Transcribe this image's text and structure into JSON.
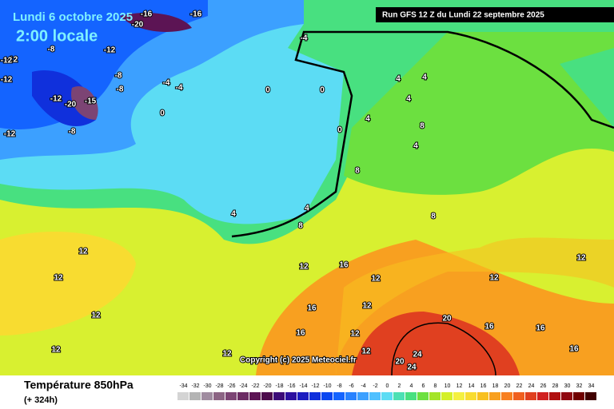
{
  "header": {
    "date": "Lundi 6 octobre 2025",
    "time": "2:00 locale",
    "run": "Run GFS 12 Z du Lundi 22 septembre 2025"
  },
  "footer": {
    "title": "Température 850hPa",
    "lead": "(+ 324h)",
    "copyright": "Copyright (c) 2025 Meteociel.fr"
  },
  "map_labels": [
    -16,
    -16,
    -20,
    -12,
    -12,
    -8,
    -12,
    -12,
    -8,
    -12,
    -20,
    -15,
    -8,
    -8,
    -12,
    -4,
    -4,
    -4,
    0,
    0,
    0,
    0,
    4,
    4,
    4,
    4,
    8,
    8,
    8,
    4,
    8,
    4,
    4,
    12,
    12,
    12,
    12,
    12,
    16,
    16,
    16,
    12,
    12,
    12,
    16,
    16,
    20,
    24,
    24,
    20,
    12,
    16,
    12,
    12,
    12
  ],
  "colorbar": {
    "ticks": [
      -34,
      -32,
      -30,
      -28,
      -26,
      -24,
      -22,
      -20,
      -18,
      -16,
      -14,
      -12,
      -10,
      -8,
      -6,
      -4,
      -2,
      0,
      2,
      4,
      6,
      8,
      10,
      12,
      14,
      16,
      18,
      20,
      22,
      24,
      26,
      28,
      30,
      32,
      34
    ],
    "colors": [
      "#d4d4d4",
      "#b4b4b4",
      "#a08ca0",
      "#8c6484",
      "#7c4474",
      "#6c2c64",
      "#5c1454",
      "#4c0a4c",
      "#3c0a78",
      "#2c10a0",
      "#1c1cc0",
      "#1030dc",
      "#0a46f0",
      "#1464ff",
      "#2882ff",
      "#3ca0ff",
      "#50c0ff",
      "#5cdcf4",
      "#4ce0b4",
      "#48e080",
      "#6ce040",
      "#a4e428",
      "#d4f028",
      "#f4f040",
      "#f8dc30",
      "#f8c020",
      "#f8a020",
      "#f88020",
      "#f06020",
      "#e04020",
      "#d02020",
      "#b01010",
      "#900810",
      "#700000",
      "#400000"
    ]
  }
}
